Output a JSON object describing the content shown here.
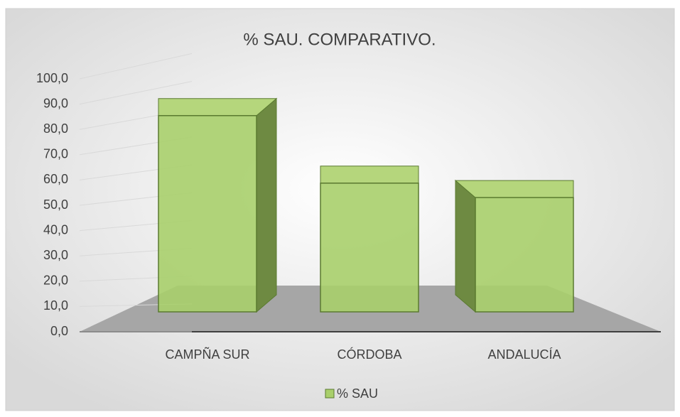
{
  "chart_data": {
    "type": "bar3d",
    "title": "% SAU. COMPARATIVO.",
    "categories": [
      "CAMPÑA SUR",
      "CÓRDOBA",
      "ANDALUCÍA"
    ],
    "series": [
      {
        "name": "% SAU",
        "color": "#a9cf6b",
        "values": [
          77.6,
          50.9,
          45.2
        ]
      }
    ],
    "ylim": [
      0,
      100
    ],
    "yticks": [
      {
        "value": 0,
        "label": "0,0"
      },
      {
        "value": 10,
        "label": "10,0"
      },
      {
        "value": 20,
        "label": "20,0"
      },
      {
        "value": 30,
        "label": "30,0"
      },
      {
        "value": 40,
        "label": "40,0"
      },
      {
        "value": 50,
        "label": "50,0"
      },
      {
        "value": 60,
        "label": "60,0"
      },
      {
        "value": 70,
        "label": "70,0"
      },
      {
        "value": 80,
        "label": "80,0"
      },
      {
        "value": 90,
        "label": "90,0"
      },
      {
        "value": 100,
        "label": "100,0"
      }
    ],
    "grid": true,
    "legend": "bottom"
  }
}
